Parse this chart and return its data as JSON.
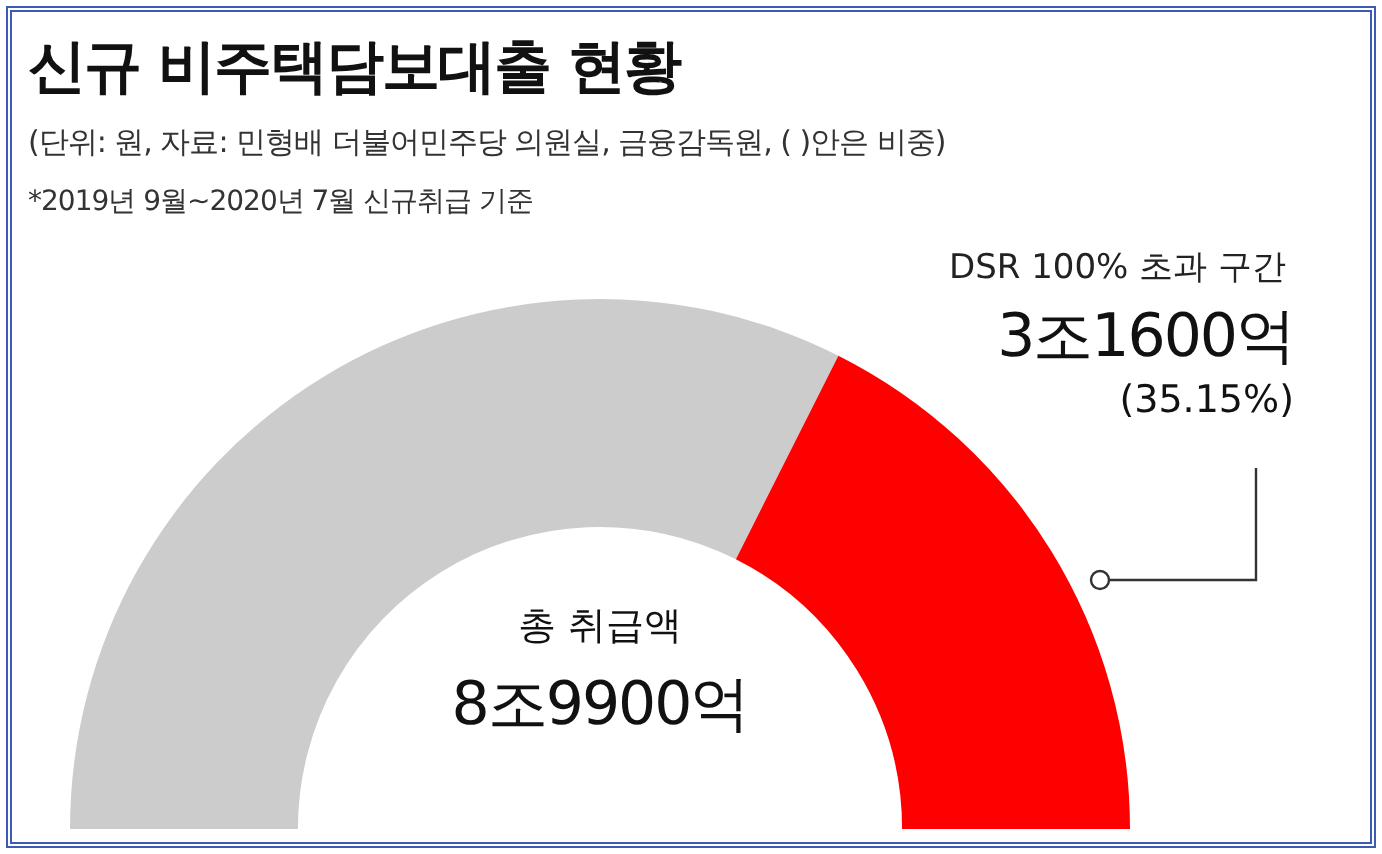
{
  "chart_data": {
    "type": "donut",
    "title": "신규 비주택담보대출 현황",
    "subtitle": "(단위: 원, 자료: 민형배 더불어민주당 의원실, 금융감독원, (   )안은 비중)",
    "categories": [
      null,
      "DSR 100% 초과 구간"
    ],
    "values": [
      64.85,
      35.15
    ],
    "colors": [
      "#cccccc",
      "#ff0000"
    ],
    "value_labels": [
      null,
      "3조1600억\n(35.15%)"
    ],
    "annotations": [
      "*2019년 9월~2020년 7월 신규취급 기준",
      "총 취급액",
      "8조9900억"
    ],
    "legend": false
  }
}
